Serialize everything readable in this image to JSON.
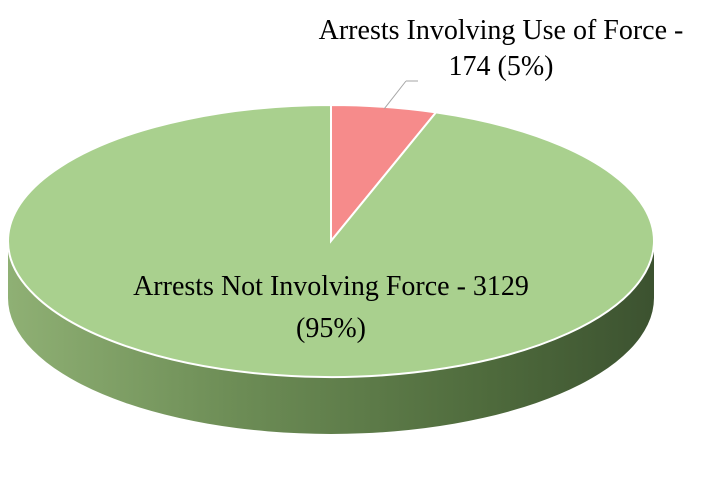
{
  "chart_data": {
    "type": "pie",
    "title": "",
    "slices": [
      {
        "label": "Arrests Involving Use of Force",
        "value": 174,
        "percent": 5,
        "color": "#f68b8b"
      },
      {
        "label": "Arrests Not Involving Force",
        "value": 3129,
        "percent": 95,
        "color": "#a9d08e"
      }
    ],
    "legend": "none",
    "data_labels": [
      {
        "line1": "Arrests Involving Use of Force -",
        "line2": "174  (5%)"
      },
      {
        "line1": "Arrests Not Involving Force - 3129",
        "line2": "(95%)"
      }
    ]
  }
}
